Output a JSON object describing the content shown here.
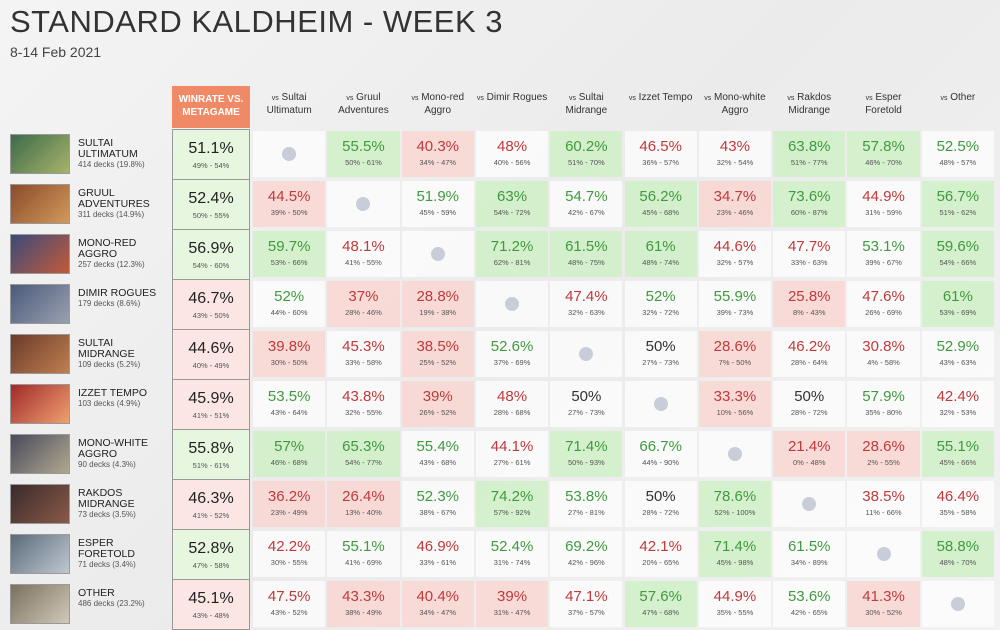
{
  "header": {
    "title": "STANDARD KALDHEIM - WEEK 3",
    "subtitle": "8-14 Feb 2021",
    "winrate_header": "WINRATE VS. METAGAME"
  },
  "columns": [
    {
      "prefix": "vs",
      "name": "Sultai Ultimatum"
    },
    {
      "prefix": "vs",
      "name": "Gruul Adventures"
    },
    {
      "prefix": "vs",
      "name": "Mono-red Aggro"
    },
    {
      "prefix": "vs",
      "name": "Dimir Rogues"
    },
    {
      "prefix": "vs",
      "name": "Sultai Midrange"
    },
    {
      "prefix": "vs",
      "name": "Izzet Tempo"
    },
    {
      "prefix": "vs",
      "name": "Mono-white Aggro"
    },
    {
      "prefix": "vs",
      "name": "Rakdos Midrange"
    },
    {
      "prefix": "vs",
      "name": "Esper Foretold"
    },
    {
      "prefix": "vs",
      "name": "Other"
    }
  ],
  "rows": [
    {
      "name": "SULTAI ULTIMATUM",
      "decks": "414 decks (19.8%)",
      "winrate": "51.1%",
      "range": "49% - 54%",
      "cells": [
        null,
        [
          "55.5%",
          "50% - 61%"
        ],
        [
          "40.3%",
          "34% - 47%"
        ],
        [
          "48%",
          "40% - 56%"
        ],
        [
          "60.2%",
          "51% - 70%"
        ],
        [
          "46.5%",
          "36% - 57%"
        ],
        [
          "43%",
          "32% - 54%"
        ],
        [
          "63.8%",
          "51% - 77%"
        ],
        [
          "57.8%",
          "46% - 70%"
        ],
        [
          "52.5%",
          "48% - 57%"
        ]
      ]
    },
    {
      "name": "GRUUL ADVENTURES",
      "decks": "311 decks (14.9%)",
      "winrate": "52.4%",
      "range": "50% - 55%",
      "cells": [
        [
          "44.5%",
          "39% - 50%"
        ],
        null,
        [
          "51.9%",
          "45% - 59%"
        ],
        [
          "63%",
          "54% - 72%"
        ],
        [
          "54.7%",
          "42% - 67%"
        ],
        [
          "56.2%",
          "45% - 68%"
        ],
        [
          "34.7%",
          "23% - 46%"
        ],
        [
          "73.6%",
          "60% - 87%"
        ],
        [
          "44.9%",
          "31% - 59%"
        ],
        [
          "56.7%",
          "51% - 62%"
        ]
      ]
    },
    {
      "name": "MONO-RED AGGRO",
      "decks": "257 decks (12.3%)",
      "winrate": "56.9%",
      "range": "54% - 60%",
      "cells": [
        [
          "59.7%",
          "53% - 66%"
        ],
        [
          "48.1%",
          "41% - 55%"
        ],
        null,
        [
          "71.2%",
          "62% - 81%"
        ],
        [
          "61.5%",
          "48% - 75%"
        ],
        [
          "61%",
          "48% - 74%"
        ],
        [
          "44.6%",
          "32% - 57%"
        ],
        [
          "47.7%",
          "33% - 63%"
        ],
        [
          "53.1%",
          "39% - 67%"
        ],
        [
          "59.6%",
          "54% - 66%"
        ]
      ]
    },
    {
      "name": "DIMIR ROGUES",
      "decks": "179 decks (8.6%)",
      "winrate": "46.7%",
      "range": "43% - 50%",
      "cells": [
        [
          "52%",
          "44% - 60%"
        ],
        [
          "37%",
          "28% - 46%"
        ],
        [
          "28.8%",
          "19% - 38%"
        ],
        null,
        [
          "47.4%",
          "32% - 63%"
        ],
        [
          "52%",
          "32% - 72%"
        ],
        [
          "55.9%",
          "39% - 73%"
        ],
        [
          "25.8%",
          "8% - 43%"
        ],
        [
          "47.6%",
          "26% - 69%"
        ],
        [
          "61%",
          "53% - 69%"
        ]
      ]
    },
    {
      "name": "SULTAI MIDRANGE",
      "decks": "109 decks (5.2%)",
      "winrate": "44.6%",
      "range": "40% - 49%",
      "cells": [
        [
          "39.8%",
          "30% - 50%"
        ],
        [
          "45.3%",
          "33% - 58%"
        ],
        [
          "38.5%",
          "25% - 52%"
        ],
        [
          "52.6%",
          "37% - 69%"
        ],
        null,
        [
          "50%",
          "27% - 73%"
        ],
        [
          "28.6%",
          "7% - 50%"
        ],
        [
          "46.2%",
          "28% - 64%"
        ],
        [
          "30.8%",
          "4% - 58%"
        ],
        [
          "52.9%",
          "43% - 63%"
        ]
      ]
    },
    {
      "name": "IZZET TEMPO",
      "decks": "103 decks (4.9%)",
      "winrate": "45.9%",
      "range": "41% - 51%",
      "cells": [
        [
          "53.5%",
          "43% - 64%"
        ],
        [
          "43.8%",
          "32% - 55%"
        ],
        [
          "39%",
          "26% - 52%"
        ],
        [
          "48%",
          "28% - 68%"
        ],
        [
          "50%",
          "27% - 73%"
        ],
        null,
        [
          "33.3%",
          "10% - 56%"
        ],
        [
          "50%",
          "28% - 72%"
        ],
        [
          "57.9%",
          "35% - 80%"
        ],
        [
          "42.4%",
          "32% - 53%"
        ]
      ]
    },
    {
      "name": "MONO-WHITE AGGRO",
      "decks": "90 decks (4.3%)",
      "winrate": "55.8%",
      "range": "51% - 61%",
      "cells": [
        [
          "57%",
          "46% - 68%"
        ],
        [
          "65.3%",
          "54% - 77%"
        ],
        [
          "55.4%",
          "43% - 68%"
        ],
        [
          "44.1%",
          "27% - 61%"
        ],
        [
          "71.4%",
          "50% - 93%"
        ],
        [
          "66.7%",
          "44% - 90%"
        ],
        null,
        [
          "21.4%",
          "0% - 48%"
        ],
        [
          "28.6%",
          "2% - 55%"
        ],
        [
          "55.1%",
          "45% - 66%"
        ]
      ]
    },
    {
      "name": "RAKDOS MIDRANGE",
      "decks": "73 decks (3.5%)",
      "winrate": "46.3%",
      "range": "41% - 52%",
      "cells": [
        [
          "36.2%",
          "23% - 49%"
        ],
        [
          "26.4%",
          "13% - 40%"
        ],
        [
          "52.3%",
          "38% - 67%"
        ],
        [
          "74.2%",
          "57% - 92%"
        ],
        [
          "53.8%",
          "27% - 81%"
        ],
        [
          "50%",
          "28% - 72%"
        ],
        [
          "78.6%",
          "52% - 100%"
        ],
        null,
        [
          "38.5%",
          "11% - 66%"
        ],
        [
          "46.4%",
          "35% - 58%"
        ]
      ]
    },
    {
      "name": "ESPER FORETOLD",
      "decks": "71 decks (3.4%)",
      "winrate": "52.8%",
      "range": "47% - 58%",
      "cells": [
        [
          "42.2%",
          "30% - 55%"
        ],
        [
          "55.1%",
          "41% - 69%"
        ],
        [
          "46.9%",
          "33% - 61%"
        ],
        [
          "52.4%",
          "31% - 74%"
        ],
        [
          "69.2%",
          "42% - 96%"
        ],
        [
          "42.1%",
          "20% - 65%"
        ],
        [
          "71.4%",
          "45% - 98%"
        ],
        [
          "61.5%",
          "34% - 89%"
        ],
        null,
        [
          "58.8%",
          "48% - 70%"
        ]
      ]
    },
    {
      "name": "OTHER",
      "decks": "486 decks (23.2%)",
      "winrate": "45.1%",
      "range": "43% - 48%",
      "cells": [
        [
          "47.5%",
          "43% - 52%"
        ],
        [
          "43.3%",
          "38% - 49%"
        ],
        [
          "40.4%",
          "34% - 47%"
        ],
        [
          "39%",
          "31% - 47%"
        ],
        [
          "47.1%",
          "37% - 57%"
        ],
        [
          "57.6%",
          "47% - 68%"
        ],
        [
          "44.9%",
          "35% - 55%"
        ],
        [
          "53.6%",
          "42% - 65%"
        ],
        [
          "41.3%",
          "30% - 52%"
        ],
        null
      ]
    }
  ]
}
